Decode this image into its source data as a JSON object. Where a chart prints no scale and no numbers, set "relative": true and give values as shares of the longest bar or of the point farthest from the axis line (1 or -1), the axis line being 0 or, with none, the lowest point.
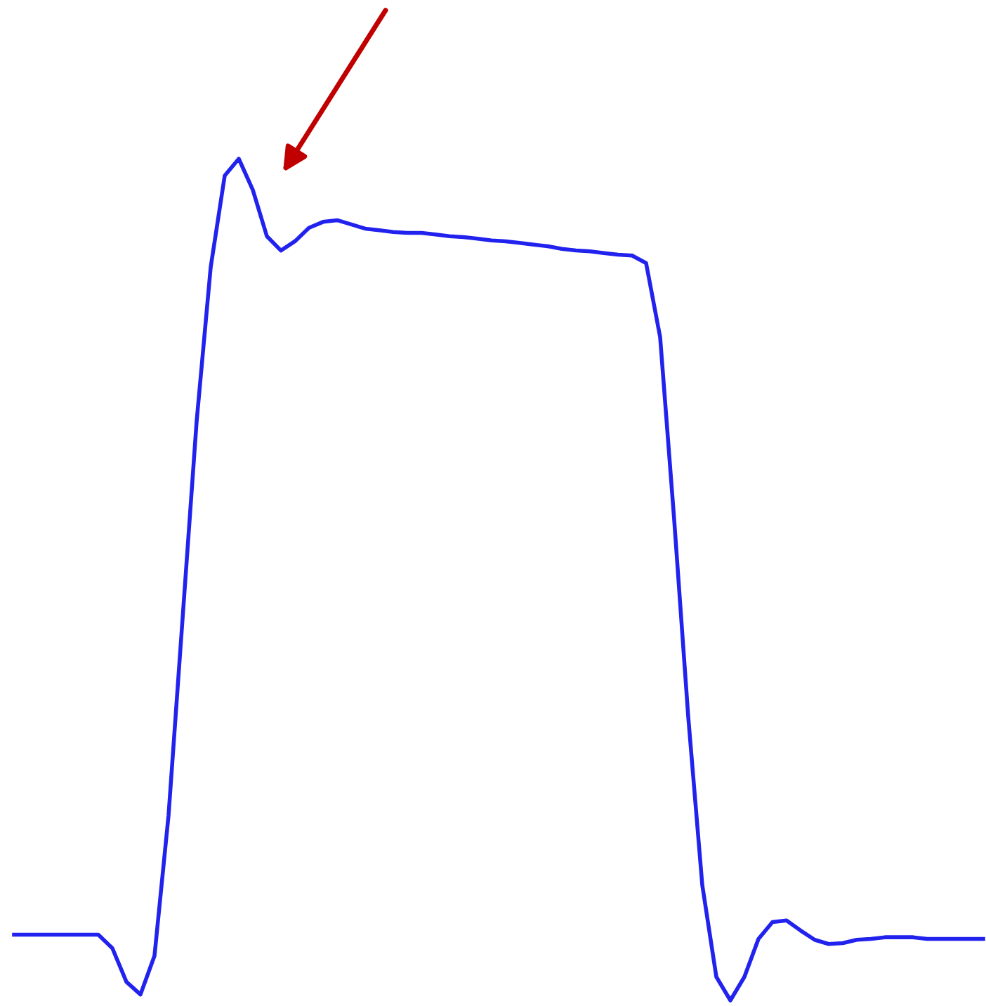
{
  "chart_data": {
    "type": "line",
    "relative": true,
    "legend": false,
    "marker": "none",
    "line_style": "solid",
    "categories": [
      null,
      null,
      null,
      null,
      null,
      null,
      null,
      null,
      null,
      null,
      null,
      null,
      null,
      null,
      null,
      null,
      null,
      null,
      null,
      null,
      null,
      null,
      null,
      null,
      null,
      null,
      null,
      null,
      null,
      null,
      null,
      null,
      null,
      null,
      null,
      null,
      null,
      null,
      null,
      null,
      null,
      null,
      null,
      null,
      null,
      null,
      null,
      null,
      null,
      null,
      null,
      null,
      null,
      null,
      null,
      null,
      null,
      null,
      null,
      null,
      null,
      null,
      null,
      null,
      null,
      null,
      null,
      null,
      null,
      null
    ],
    "series": [
      {
        "color": "#2222ee",
        "values": [
          0.078,
          0.078,
          0.078,
          0.078,
          0.078,
          0.078,
          0.078,
          0.062,
          0.022,
          0.007,
          0.053,
          0.22,
          0.454,
          0.688,
          0.871,
          0.98,
          1,
          0.963,
          0.908,
          0.891,
          0.902,
          0.918,
          0.925,
          0.927,
          0.922,
          0.917,
          0.915,
          0.913,
          0.912,
          0.912,
          0.91,
          0.908,
          0.907,
          0.905,
          0.903,
          0.902,
          0.9,
          0.898,
          0.896,
          0.893,
          0.891,
          0.89,
          0.888,
          0.886,
          0.885,
          0.876,
          0.788,
          0.571,
          0.337,
          0.137,
          0.028,
          0,
          0.028,
          0.073,
          0.093,
          0.095,
          0.083,
          0.072,
          0.067,
          0.068,
          0.072,
          0.073,
          0.075,
          0.075,
          0.075,
          0.073,
          0.073,
          0.073,
          0.073,
          0.073
        ]
      }
    ]
  }
}
